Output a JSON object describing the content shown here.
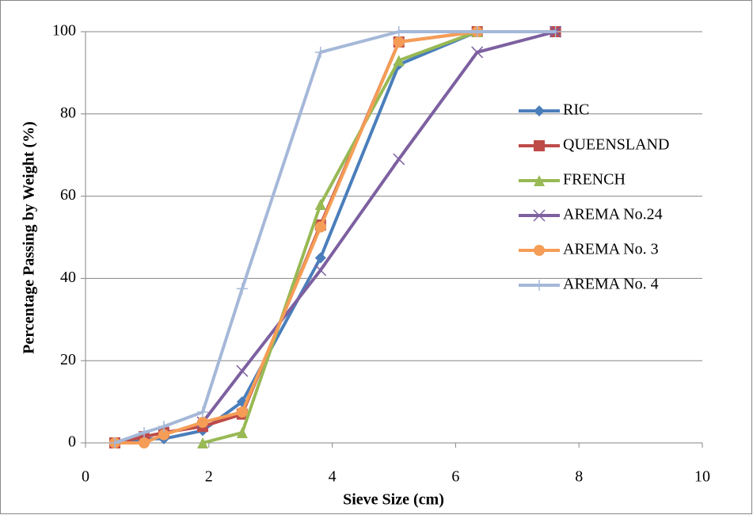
{
  "chart_data": {
    "type": "line",
    "x_label": "Sieve Size (cm)",
    "y_label": "Percentage Passing by Weight (%)",
    "xlim": [
      0,
      10
    ],
    "xticks": [
      0,
      2,
      4,
      6,
      8,
      10
    ],
    "ylim": [
      0,
      100
    ],
    "yticks": [
      0,
      20,
      40,
      60,
      80,
      100
    ],
    "grid": true,
    "legend": "right",
    "series": [
      {
        "name": "RIC",
        "color": "#4a7ebb",
        "marker": "diamond",
        "x": [
          0.475,
          0.95,
          1.27,
          1.9,
          2.54,
          3.81,
          5.08,
          6.35,
          7.62
        ],
        "values": [
          0,
          1,
          1,
          3,
          10,
          45,
          92,
          100,
          100
        ]
      },
      {
        "name": "QUEENSLAND",
        "color": "#be4b48",
        "marker": "square",
        "x": [
          0.475,
          0.95,
          1.27,
          1.9,
          2.54,
          3.81,
          5.08,
          6.35,
          7.62
        ],
        "values": [
          0,
          1.5,
          2.5,
          4,
          7,
          53,
          97.5,
          100,
          100
        ]
      },
      {
        "name": "FRENCH",
        "color": "#98b954",
        "marker": "triangle",
        "x": [
          1.9,
          2.54,
          3.81,
          5.08,
          6.35
        ],
        "values": [
          0,
          2.5,
          58,
          93,
          100
        ]
      },
      {
        "name": "AREMA No.24",
        "color": "#7d60a0",
        "marker": "x",
        "x": [
          1.9,
          2.54,
          3.81,
          5.08,
          6.35,
          7.62
        ],
        "values": [
          5,
          17.5,
          42,
          69,
          95,
          100
        ]
      },
      {
        "name": "AREMA No. 3",
        "color": "#f59d56",
        "marker": "circle",
        "x": [
          0.475,
          0.95,
          1.27,
          1.9,
          2.54,
          3.81,
          5.08,
          6.35
        ],
        "values": [
          0,
          0,
          2,
          5,
          7.5,
          52.5,
          97.5,
          100
        ]
      },
      {
        "name": "AREMA No. 4",
        "color": "#a5b8d8",
        "marker": "plus",
        "x": [
          0.475,
          0.95,
          1.27,
          1.9,
          2.54,
          3.81,
          5.08,
          6.35,
          7.62
        ],
        "values": [
          0,
          2.5,
          4,
          7.5,
          37.5,
          95,
          100,
          100,
          100
        ]
      }
    ]
  }
}
